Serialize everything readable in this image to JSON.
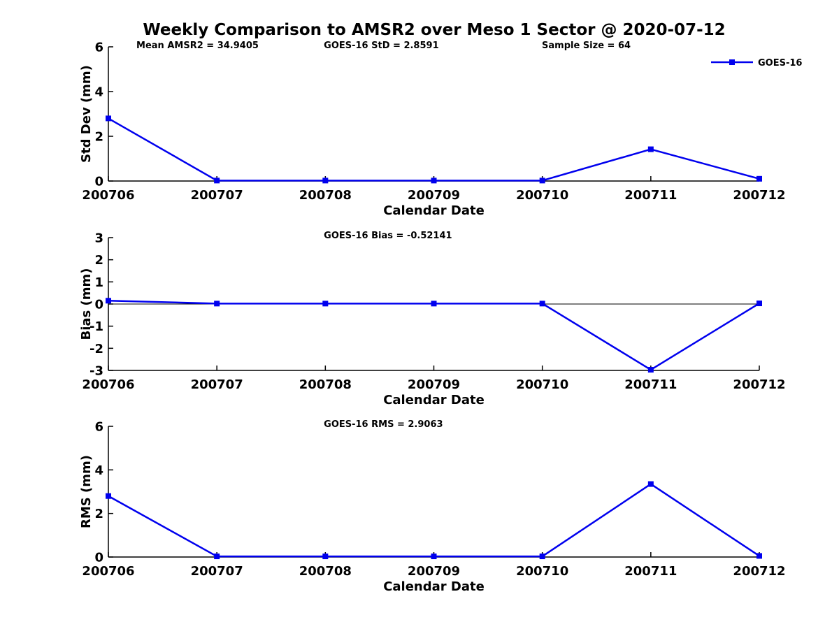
{
  "figure": {
    "title": "Weekly Comparison to AMSR2 over Meso 1 Sector @ 2020-07-12",
    "background_color": "#ffffff",
    "text_color": "#000000",
    "line_color": "#0000EE",
    "axis_color": "#000000"
  },
  "legend": {
    "label": "GOES-16",
    "marker": "square-marker-icon",
    "position": "top-right"
  },
  "chart_data": [
    {
      "type": "line",
      "ylabel": "Std Dev (mm)",
      "xlabel": "Calendar Date",
      "categories": [
        "200706",
        "200707",
        "200708",
        "200709",
        "200710",
        "200711",
        "200712"
      ],
      "series": [
        {
          "name": "GOES-16",
          "values": [
            2.8,
            0.02,
            0.02,
            0.02,
            0.02,
            1.42,
            0.1
          ]
        }
      ],
      "ylim": [
        0,
        6
      ],
      "yticks": [
        0,
        2,
        4,
        6
      ],
      "annotations": [
        "Mean AMSR2 = 34.9405",
        "GOES-16 StD = 2.8591",
        "Sample Size = 64"
      ],
      "zero_line": false,
      "grid": false,
      "legend_position": "top-right"
    },
    {
      "type": "line",
      "ylabel": "Bias (mm)",
      "xlabel": "Calendar Date",
      "categories": [
        "200706",
        "200707",
        "200708",
        "200709",
        "200710",
        "200711",
        "200712"
      ],
      "series": [
        {
          "name": "GOES-16",
          "values": [
            0.15,
            0.02,
            0.02,
            0.02,
            0.02,
            -2.97,
            0.03
          ]
        }
      ],
      "ylim": [
        -3,
        3
      ],
      "yticks": [
        -3,
        -2,
        -1,
        0,
        1,
        2,
        3
      ],
      "annotations": [
        "GOES-16 Bias  = -0.52141"
      ],
      "zero_line": true,
      "grid": false,
      "legend_position": "none"
    },
    {
      "type": "line",
      "ylabel": "RMS (mm)",
      "xlabel": "Calendar Date",
      "categories": [
        "200706",
        "200707",
        "200708",
        "200709",
        "200710",
        "200711",
        "200712"
      ],
      "series": [
        {
          "name": "GOES-16",
          "values": [
            2.8,
            0.03,
            0.03,
            0.03,
            0.03,
            3.35,
            0.05
          ]
        }
      ],
      "ylim": [
        0,
        6
      ],
      "yticks": [
        0,
        2,
        4,
        6
      ],
      "annotations": [
        "GOES-16 RMS = 2.9063"
      ],
      "zero_line": false,
      "grid": false,
      "legend_position": "none"
    }
  ]
}
